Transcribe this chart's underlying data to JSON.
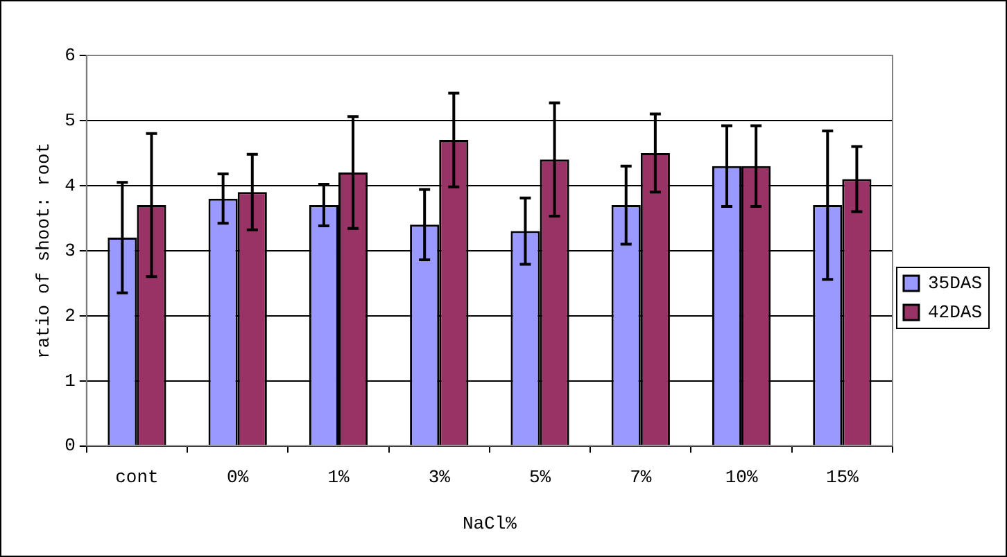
{
  "chart_data": {
    "type": "bar",
    "xlabel": "NaCl%",
    "ylabel": "ratio of shoot: root",
    "categories": [
      "cont",
      "0%",
      "1%",
      "3%",
      "5%",
      "7%",
      "10%",
      "15%"
    ],
    "series": [
      {
        "name": "35DAS",
        "color": "#9999ff",
        "values": [
          3.2,
          3.8,
          3.7,
          3.4,
          3.3,
          3.7,
          4.3,
          3.7
        ],
        "errors": [
          0.85,
          0.38,
          0.32,
          0.54,
          0.51,
          0.6,
          0.62,
          1.14
        ]
      },
      {
        "name": "42DAS",
        "color": "#993366",
        "values": [
          3.7,
          3.9,
          4.2,
          4.7,
          4.4,
          4.5,
          4.3,
          4.1
        ],
        "errors": [
          1.1,
          0.58,
          0.86,
          0.72,
          0.87,
          0.6,
          0.62,
          0.5
        ]
      }
    ],
    "ylim": [
      0,
      6
    ],
    "yticks": [
      0,
      1,
      2,
      3,
      4,
      5,
      6
    ],
    "grid": "y",
    "legend": "right"
  }
}
